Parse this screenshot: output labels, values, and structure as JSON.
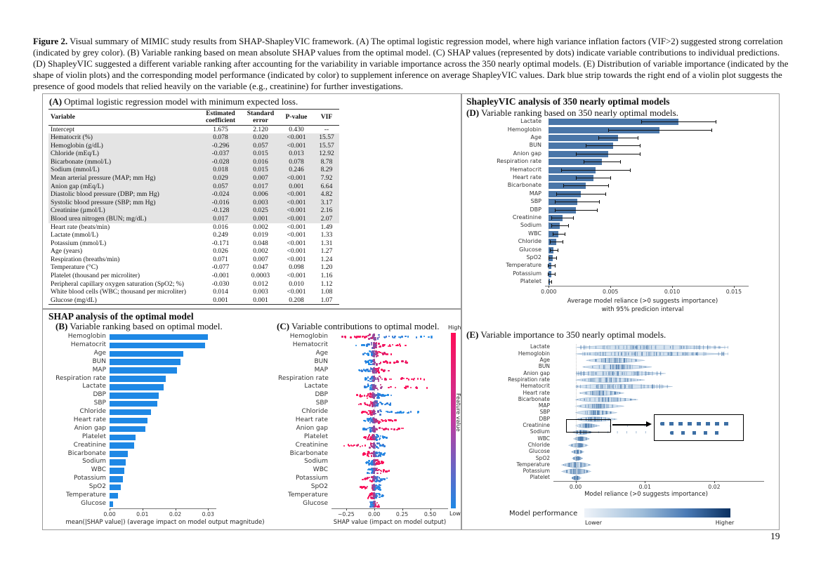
{
  "page": {
    "number": "19"
  },
  "caption": {
    "label": "Figure 2.",
    "text": " Visual summary of MIMIC study results from SHAP-ShapleyVIC framework. (A) The optimal logistic regression model, where high variance inflation factors (VIF>2) suggested strong correlation (indicated by grey color). (B) Variable ranking based on mean absolute SHAP values from the optimal model. (C) SHAP values (represented by dots) indicate variable contributions to individual predictions. (D) ShapleyVIC suggested a different variable ranking after accounting for the variability in variable importance across the 350 nearly optimal models. (E) Distribution of variable importance (indicated by the shape of violin plots) and the corresponding model performance (indicated by color) to supplement inference on average ShapleyVIC values. Dark blue strip towards the right end of a violin plot suggests the presence of good models that relied heavily on the variable (e.g., creatinine) for further investigations."
  },
  "panel_a": {
    "label": "(A)",
    "title": "Optimal logistic regression model with minimum expected loss.",
    "table": {
      "headers": [
        "Variable",
        "Estimated coefficient",
        "Standard error",
        "P-value",
        "VIF"
      ],
      "rows": [
        {
          "variable": "Intercept",
          "coef": "1.675",
          "se": "2.120",
          "p": "0.430",
          "vif": "--",
          "highlight": false
        },
        {
          "variable": "Hematocrit (%)",
          "coef": "0.078",
          "se": "0.020",
          "p": "<0.001",
          "vif": "15.57",
          "highlight": true
        },
        {
          "variable": "Hemoglobin (g/dL)",
          "coef": "-0.296",
          "se": "0.057",
          "p": "<0.001",
          "vif": "15.57",
          "highlight": true
        },
        {
          "variable": "Chloride (mEq/L)",
          "coef": "-0.037",
          "se": "0.015",
          "p": "0.013",
          "vif": "12.92",
          "highlight": true
        },
        {
          "variable": "Bicarbonate (mmol/L)",
          "coef": "-0.028",
          "se": "0.016",
          "p": "0.078",
          "vif": "8.78",
          "highlight": true
        },
        {
          "variable": "Sodium (mmol/L)",
          "coef": "0.018",
          "se": "0.015",
          "p": "0.246",
          "vif": "8.29",
          "highlight": true
        },
        {
          "variable": "Mean arterial pressure (MAP; mm Hg)",
          "coef": "0.029",
          "se": "0.007",
          "p": "<0.001",
          "vif": "7.92",
          "highlight": true
        },
        {
          "variable": "Anion gap (mEq/L)",
          "coef": "0.057",
          "se": "0.017",
          "p": "0.001",
          "vif": "6.64",
          "highlight": true
        },
        {
          "variable": "Diastolic blood pressure (DBP; mm Hg)",
          "coef": "-0.024",
          "se": "0.006",
          "p": "<0.001",
          "vif": "4.82",
          "highlight": true
        },
        {
          "variable": "Systolic blood pressure (SBP; mm Hg)",
          "coef": "-0.016",
          "se": "0.003",
          "p": "<0.001",
          "vif": "3.17",
          "highlight": true
        },
        {
          "variable": "Creatinine (µmol/L)",
          "coef": "-0.128",
          "se": "0.025",
          "p": "<0.001",
          "vif": "2.16",
          "highlight": true
        },
        {
          "variable": "Blood urea nitrogen (BUN; mg/dL)",
          "coef": "0.017",
          "se": "0.001",
          "p": "<0.001",
          "vif": "2.07",
          "highlight": true
        },
        {
          "variable": "Heart rate (beats/min)",
          "coef": "0.016",
          "se": "0.002",
          "p": "<0.001",
          "vif": "1.49",
          "highlight": false
        },
        {
          "variable": "Lactate (mmol/L)",
          "coef": "0.249",
          "se": "0.019",
          "p": "<0.001",
          "vif": "1.33",
          "highlight": false
        },
        {
          "variable": "Potassium (mmol/L)",
          "coef": "-0.171",
          "se": "0.048",
          "p": "<0.001",
          "vif": "1.31",
          "highlight": false
        },
        {
          "variable": "Age (years)",
          "coef": "0.026",
          "se": "0.002",
          "p": "<0.001",
          "vif": "1.27",
          "highlight": false
        },
        {
          "variable": "Respiration (breaths/min)",
          "coef": "0.071",
          "se": "0.007",
          "p": "<0.001",
          "vif": "1.24",
          "highlight": false
        },
        {
          "variable": "Temperature (°C)",
          "coef": "-0.077",
          "se": "0.047",
          "p": "0.098",
          "vif": "1.20",
          "highlight": false
        },
        {
          "variable": "Platelet (thousand per microliter)",
          "coef": "-0.001",
          "se": "0.0003",
          "p": "<0.001",
          "vif": "1.16",
          "highlight": false
        },
        {
          "variable": "Peripheral capillary oxygen saturation (SpO2; %)",
          "coef": "-0.030",
          "se": "0.012",
          "p": "0.010",
          "vif": "1.12",
          "highlight": false
        },
        {
          "variable": "White blood cells (WBC; thousand per microliter)",
          "coef": "0.014",
          "se": "0.003",
          "p": "<0.001",
          "vif": "1.08",
          "highlight": false
        },
        {
          "variable": "Glucose (mg/dL)",
          "coef": "0.001",
          "se": "0.001",
          "p": "0.208",
          "vif": "1.07",
          "highlight": false
        }
      ]
    }
  },
  "shap_section": {
    "title": "SHAP analysis of the optimal model"
  },
  "panel_b": {
    "label": "(B)",
    "title": "Variable ranking based on optimal model."
  },
  "panel_c": {
    "label": "(C)",
    "title": "Variable contributions to optimal model."
  },
  "vic_section": {
    "title": "ShapleyVIC analysis of 350 nearly optimal models"
  },
  "panel_d": {
    "label": "(D)",
    "title": "Variable ranking based on 350 nearly optimal models."
  },
  "panel_e": {
    "label": "(E)",
    "title": "Variable importance to 350 nearly optimal models."
  },
  "chart_data": [
    {
      "id": "b",
      "type": "bar",
      "title": "Variable ranking based on optimal model",
      "categories": [
        "Hemoglobin",
        "Hematocrit",
        "Age",
        "BUN",
        "MAP",
        "Respiration rate",
        "Lactate",
        "DBP",
        "SBP",
        "Chloride",
        "Heart rate",
        "Anion gap",
        "Platelet",
        "Creatinine",
        "Bicarbonate",
        "Sodium",
        "WBC",
        "Potassium",
        "SpO2",
        "Temperature",
        "Glucose"
      ],
      "values": [
        0.03,
        0.029,
        0.0225,
        0.0215,
        0.0205,
        0.017,
        0.0165,
        0.015,
        0.0145,
        0.0125,
        0.0115,
        0.011,
        0.008,
        0.0075,
        0.0055,
        0.005,
        0.0045,
        0.004,
        0.0035,
        0.0025,
        0.001
      ],
      "xlabel": "mean(|SHAP value|) (average impact on model output magnitude)",
      "tick_values": [
        0,
        0.01,
        0.02,
        0.03
      ],
      "tick_labels": [
        "0.00",
        "0.01",
        "0.02",
        "0.03"
      ],
      "xlim": [
        0,
        0.0325
      ],
      "bar_color": "#1e88e5"
    },
    {
      "id": "c",
      "type": "beeswarm",
      "title": "Variable contributions to optimal model",
      "categories": [
        "Hemoglobin",
        "Hematocrit",
        "Age",
        "BUN",
        "MAP",
        "Respiration rate",
        "Lactate",
        "DBP",
        "SBP",
        "Chloride",
        "Heart rate",
        "Anion gap",
        "Platelet",
        "Creatinine",
        "Bicarbonate",
        "Sodium",
        "WBC",
        "Potassium",
        "SpO2",
        "Temperature",
        "Glucose"
      ],
      "points": [
        {
          "min": -0.3,
          "max": 0.57,
          "polarity": -1
        },
        {
          "min": -0.18,
          "max": 0.3,
          "polarity": 1
        },
        {
          "min": -0.1,
          "max": 0.16,
          "polarity": 1
        },
        {
          "min": -0.08,
          "max": 0.33,
          "polarity": 1
        },
        {
          "min": -0.22,
          "max": 0.14,
          "polarity": 1
        },
        {
          "min": -0.08,
          "max": 0.5,
          "polarity": 1
        },
        {
          "min": -0.1,
          "max": 0.62,
          "polarity": 1
        },
        {
          "min": -0.16,
          "max": 0.18,
          "polarity": -1
        },
        {
          "min": -0.14,
          "max": 0.16,
          "polarity": -1
        },
        {
          "min": -0.12,
          "max": 0.42,
          "polarity": -1
        },
        {
          "min": -0.1,
          "max": 0.22,
          "polarity": 1
        },
        {
          "min": -0.12,
          "max": 0.28,
          "polarity": 1
        },
        {
          "min": -0.1,
          "max": 0.12,
          "polarity": -1
        },
        {
          "min": -0.28,
          "max": 0.1,
          "polarity": -1
        },
        {
          "min": -0.1,
          "max": 0.1,
          "polarity": -1
        },
        {
          "min": -0.08,
          "max": 0.1,
          "polarity": 1
        },
        {
          "min": -0.06,
          "max": 0.16,
          "polarity": 1
        },
        {
          "min": -0.1,
          "max": 0.12,
          "polarity": -1
        },
        {
          "min": -0.14,
          "max": 0.06,
          "polarity": -1
        },
        {
          "min": -0.06,
          "max": 0.08,
          "polarity": -1
        },
        {
          "min": -0.04,
          "max": 0.05,
          "polarity": 1
        }
      ],
      "xlabel": "SHAP value (impact on model output)",
      "tick_values": [
        -0.25,
        0,
        0.25,
        0.5
      ],
      "tick_labels": [
        "−0.25",
        "0.00",
        "0.25",
        "0.50"
      ],
      "xlim": [
        -0.38,
        0.66
      ],
      "colorbar": {
        "label": "Feature value",
        "high": "High",
        "low": "Low",
        "high_color": "#ff0d57",
        "low_color": "#1e88e5"
      }
    },
    {
      "id": "d",
      "type": "bar-error",
      "title": "Variable ranking based on 350 nearly optimal models",
      "categories": [
        "Lactate",
        "Hemoglobin",
        "Age",
        "BUN",
        "Anion gap",
        "Respiration rate",
        "Hematocrit",
        "Heart rate",
        "Bicarbonate",
        "MAP",
        "SBP",
        "DBP",
        "Creatinine",
        "Sodium",
        "WBC",
        "Chloride",
        "Glucose",
        "SpO2",
        "Temperature",
        "Potassium",
        "Platelet"
      ],
      "values": [
        0.0105,
        0.009,
        0.0056,
        0.0052,
        0.0048,
        0.0043,
        0.0038,
        0.0036,
        0.003,
        0.0026,
        0.0023,
        0.0022,
        0.0011,
        0.0009,
        0.0008,
        0.0006,
        0.0004,
        0.0003,
        0.0002,
        0.0002,
        0.0001
      ],
      "err_low": [
        0.0075,
        0.0048,
        0.004,
        0.003,
        0.0022,
        0.0028,
        0.001,
        0.0022,
        0.0012,
        0.0006,
        0.0005,
        0.0005,
        0.0002,
        0.0002,
        0.0003,
        0.0001,
        0.0001,
        0.0,
        -0.0001,
        -0.0001,
        0.0
      ],
      "err_high": [
        0.0135,
        0.0132,
        0.0072,
        0.0074,
        0.0074,
        0.0058,
        0.0066,
        0.005,
        0.0048,
        0.0046,
        0.0041,
        0.0039,
        0.002,
        0.0016,
        0.0013,
        0.0011,
        0.0007,
        0.0006,
        0.0005,
        0.0005,
        0.0002
      ],
      "xlabel_line1": "Average model reliance (>0 suggests importance)",
      "xlabel_line2": "with 95% predicion interval",
      "tick_values": [
        0,
        0.005,
        0.01,
        0.015
      ],
      "tick_labels": [
        "0.000",
        "0.005",
        "0.010",
        "0.015"
      ],
      "xlim": [
        -0.0003,
        0.0162
      ],
      "bar_color": "#4a76a8"
    },
    {
      "id": "e",
      "type": "violin",
      "title": "Variable importance to 350 nearly optimal models",
      "categories": [
        "Lactate",
        "Hemoglobin",
        "Age",
        "BUN",
        "Anion gap",
        "Respiration rate",
        "Hematocrit",
        "Heart rate",
        "Bicarbonate",
        "MAP",
        "SBP",
        "DBP",
        "Creatinine",
        "Sodium",
        "WBC",
        "Chloride",
        "Glucose",
        "SpO2",
        "Temperature",
        "Potassium",
        "Platelet"
      ],
      "violins": [
        {
          "min": 0.0,
          "mode": 0.008,
          "max": 0.022,
          "half": 3.2,
          "n": 75,
          "uniform": true
        },
        {
          "min": 0.0,
          "mode": 0.006,
          "max": 0.022,
          "half": 3.2,
          "n": 75,
          "uniform": true
        },
        {
          "min": 0.0015,
          "mode": 0.0055,
          "max": 0.01,
          "half": 3.4,
          "n": 40
        },
        {
          "min": 0.001,
          "mode": 0.005,
          "max": 0.011,
          "half": 3.4,
          "n": 40
        },
        {
          "min": 0.0,
          "mode": 0.004,
          "max": 0.013,
          "half": 3.4,
          "n": 48,
          "uniform": true
        },
        {
          "min": 0.0,
          "mode": 0.004,
          "max": 0.01,
          "half": 3.4,
          "n": 40
        },
        {
          "min": 0.0,
          "mode": 0.003,
          "max": 0.014,
          "half": 3.4,
          "n": 48,
          "uniform": true
        },
        {
          "min": 0.0005,
          "mode": 0.0035,
          "max": 0.007,
          "half": 3.4,
          "n": 36
        },
        {
          "min": 0.0,
          "mode": 0.0025,
          "max": 0.009,
          "half": 3.2,
          "n": 36
        },
        {
          "min": 0.0,
          "mode": 0.0025,
          "max": 0.007,
          "half": 3.2,
          "n": 36
        },
        {
          "min": 0.0,
          "mode": 0.002,
          "max": 0.006,
          "half": 3.2,
          "n": 34
        },
        {
          "min": 0.0,
          "mode": 0.002,
          "max": 0.006,
          "half": 3.2,
          "n": 34
        },
        {
          "min": 0.0,
          "mode": 0.001,
          "max": 0.0035,
          "half": 3.0,
          "n": 30,
          "tail": 0.021
        },
        {
          "min": -0.0005,
          "mode": 0.0007,
          "max": 0.0025,
          "half": 3.0,
          "n": 28,
          "tail": 0.012
        },
        {
          "min": -0.0003,
          "mode": 0.0007,
          "max": 0.002,
          "half": 3.0,
          "n": 28
        },
        {
          "min": -0.001,
          "mode": 0.0004,
          "max": 0.0018,
          "half": 3.0,
          "n": 26
        },
        {
          "min": -0.0006,
          "mode": 0.0003,
          "max": 0.0012,
          "half": 2.8,
          "n": 24
        },
        {
          "min": -0.0005,
          "mode": 0.0002,
          "max": 0.001,
          "half": 2.8,
          "n": 24
        },
        {
          "min": -0.002,
          "mode": 0.0002,
          "max": 0.0022,
          "half": 3.8,
          "n": 30
        },
        {
          "min": -0.002,
          "mode": 0.0002,
          "max": 0.0022,
          "half": 3.8,
          "n": 30
        },
        {
          "min": -0.0006,
          "mode": 0.0001,
          "max": 0.0008,
          "half": 3.0,
          "n": 22
        }
      ],
      "xlabel": "Model reliance (>0 suggests importance)",
      "tick_values": [
        0,
        0.01,
        0.02
      ],
      "tick_labels": [
        "0.00",
        "0.01",
        "0.02"
      ],
      "xlim": [
        -0.0032,
        0.0272
      ],
      "violin_fill": "#8fb3d6",
      "violin_stroke": "#6b94bc",
      "dash_color": "#3d6fa5",
      "legend": {
        "label": "Model performance",
        "low": "Lower",
        "high": "Higher"
      }
    }
  ]
}
